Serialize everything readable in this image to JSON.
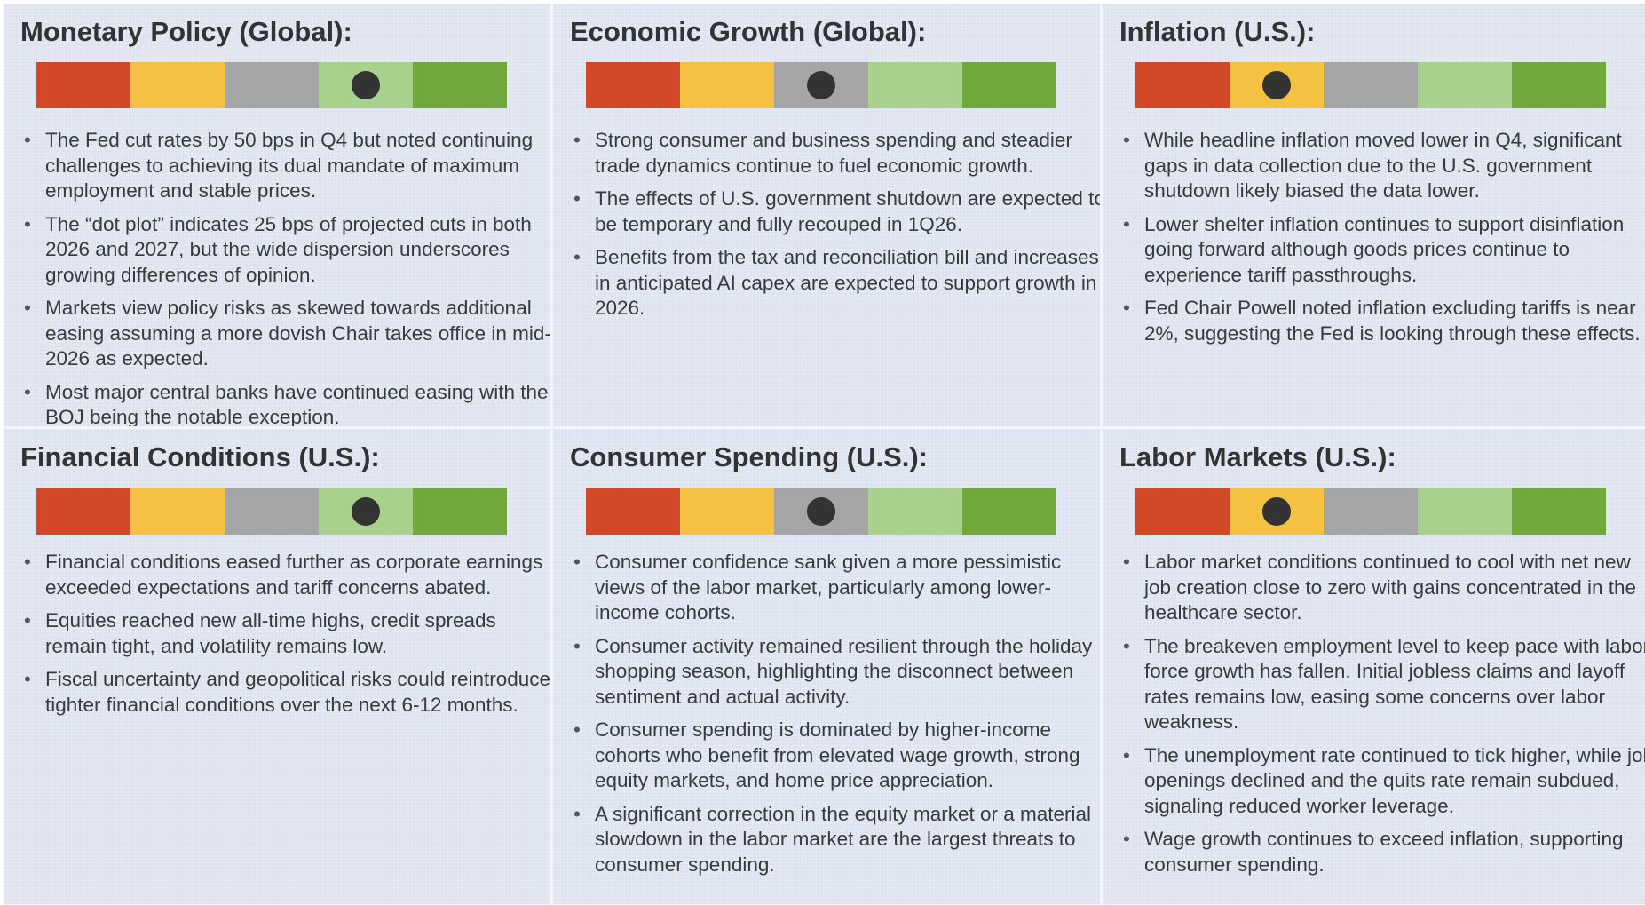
{
  "gauge_colors": [
    "#d24726",
    "#f4c142",
    "#a5a5a5",
    "#a9d18e",
    "#70a83b"
  ],
  "panels": [
    {
      "title": "Monetary Policy (Global):",
      "position": 3,
      "bullets": [
        "The Fed cut rates by 50 bps in Q4 but noted continuing challenges to achieving its dual mandate of maximum employment and stable prices.",
        "The “dot plot” indicates 25 bps of projected cuts in both 2026 and 2027, but the wide dispersion underscores growing differences of opinion.",
        "Markets view policy risks as skewed towards additional easing assuming a more dovish Chair takes office in mid-2026 as expected.",
        "Most major central banks have continued easing with the BOJ being the notable exception."
      ]
    },
    {
      "title": "Economic Growth (Global):",
      "position": 2,
      "bullets": [
        "Strong consumer and business spending and steadier trade dynamics continue to fuel economic growth.",
        "The effects of U.S. government shutdown are expected to be temporary and fully recouped in 1Q26.",
        "Benefits from the tax and reconciliation bill and increases in anticipated AI capex are expected to support growth in 2026."
      ]
    },
    {
      "title": "Inflation (U.S.):",
      "position": 1,
      "bullets": [
        "While headline inflation moved lower in Q4, significant gaps in data collection due to the U.S. government shutdown likely biased the data lower.",
        "Lower shelter inflation continues to support disinflation going forward although goods prices continue to experience tariff passthroughs.",
        "Fed Chair Powell noted inflation excluding tariffs is near 2%, suggesting the Fed is looking through these effects."
      ]
    },
    {
      "title": "Financial Conditions (U.S.):",
      "position": 3,
      "bullets": [
        "Financial conditions eased further as corporate earnings exceeded expectations and tariff concerns abated.",
        "Equities reached new all-time highs, credit spreads remain tight, and volatility remains low.",
        "Fiscal uncertainty and geopolitical risks could reintroduce tighter financial conditions over the next 6-12 months."
      ]
    },
    {
      "title": "Consumer Spending (U.S.):",
      "position": 2,
      "bullets": [
        "Consumer confidence sank given a more pessimistic views of the labor market, particularly among lower-income cohorts.",
        "Consumer activity remained resilient through the holiday shopping season, highlighting the disconnect between sentiment and actual activity.",
        "Consumer spending is dominated by higher-income cohorts who benefit from elevated wage growth, strong equity markets, and home price appreciation.",
        "A significant correction in the equity market or a material slowdown in the labor market are the largest threats to consumer spending."
      ]
    },
    {
      "title": "Labor Markets (U.S.):",
      "position": 1,
      "bullets": [
        "Labor market conditions continued to cool with net new job creation close to zero with gains concentrated in the healthcare sector.",
        "The breakeven employment level to keep pace with labor force growth has fallen. Initial jobless claims and layoff rates remains low, easing some concerns over labor weakness.",
        "The unemployment rate continued to tick higher, while job openings declined and the quits rate remain subdued, signaling reduced worker leverage.",
        "Wage growth continues to exceed inflation, supporting consumer spending."
      ]
    }
  ]
}
